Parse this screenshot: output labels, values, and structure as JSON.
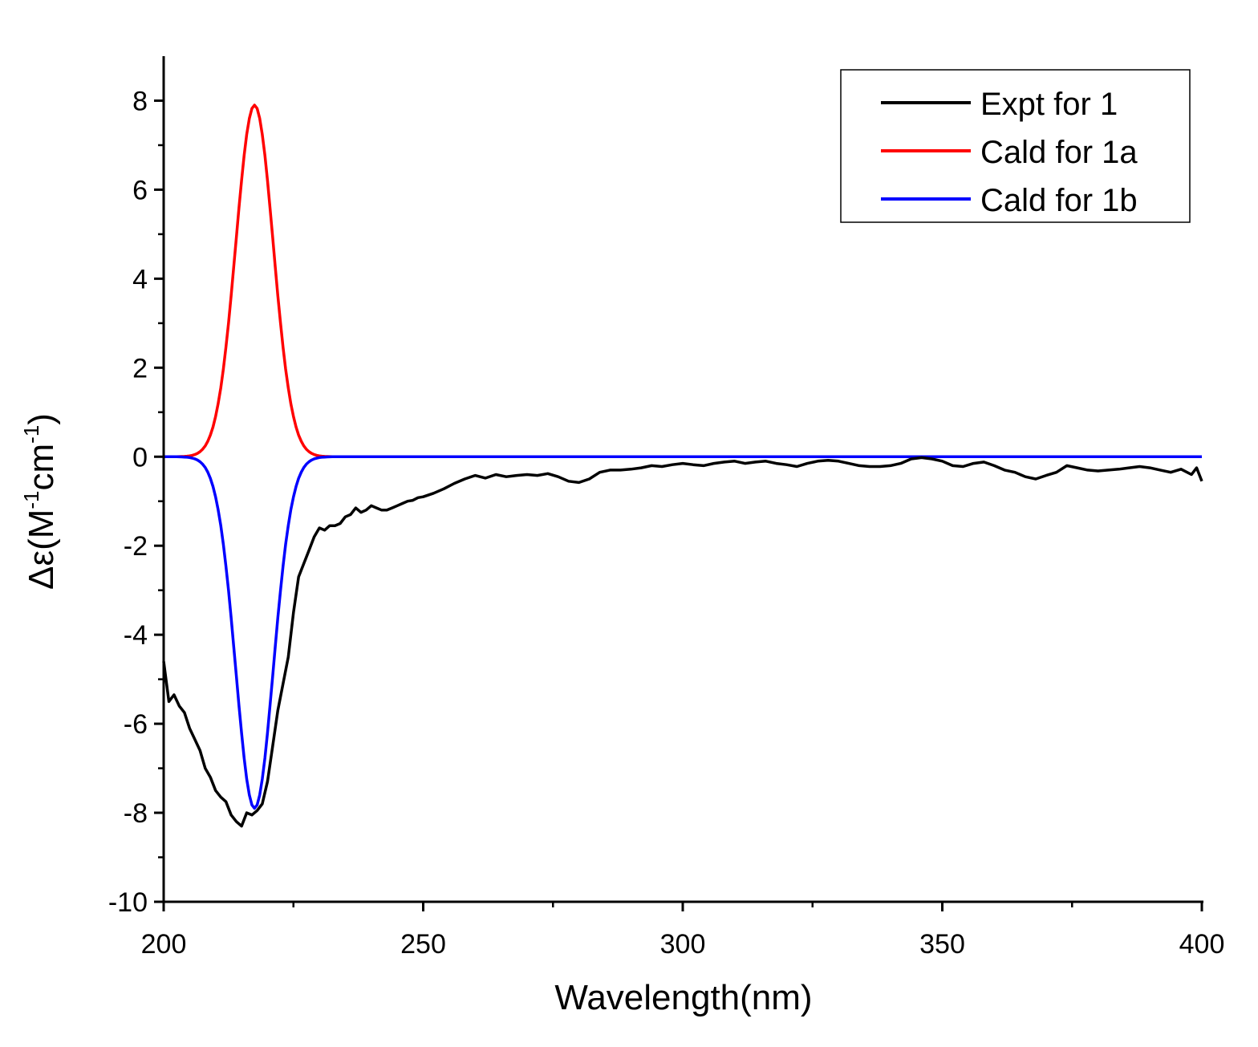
{
  "chart_data": {
    "type": "line",
    "title": "",
    "xlabel": "Wavelength(nm)",
    "ylabel": {
      "prefix": "Δε(M",
      "sup1": "-1",
      "mid": "cm",
      "sup2": "-1",
      "suffix": ")"
    },
    "xlim": [
      200,
      400
    ],
    "ylim": [
      -10,
      9
    ],
    "x_ticks": [
      200,
      250,
      300,
      350,
      400
    ],
    "x_tick_labels": [
      "200",
      "250",
      "300",
      "350",
      "400"
    ],
    "y_ticks": [
      -10,
      -8,
      -6,
      -4,
      -2,
      0,
      2,
      4,
      6,
      8
    ],
    "y_tick_labels": [
      "-10",
      "-8",
      "-6",
      "-4",
      "-2",
      "0",
      "2",
      "4",
      "6",
      "8"
    ],
    "grid": false,
    "legend_position": "top-right",
    "series": [
      {
        "name": "Expt for 1",
        "color": "#000000",
        "x": [
          200,
          201,
          202,
          203,
          204,
          205,
          206,
          207,
          208,
          209,
          210,
          211,
          212,
          213,
          214,
          215,
          216,
          217,
          218,
          219,
          220,
          221,
          222,
          223,
          224,
          225,
          226,
          227,
          228,
          229,
          230,
          231,
          232,
          233,
          234,
          235,
          236,
          237,
          238,
          239,
          240,
          241,
          242,
          243,
          244,
          245,
          246,
          247,
          248,
          249,
          250,
          252,
          254,
          256,
          258,
          260,
          262,
          264,
          266,
          268,
          270,
          272,
          274,
          276,
          278,
          280,
          282,
          284,
          286,
          288,
          290,
          292,
          294,
          296,
          298,
          300,
          302,
          304,
          306,
          308,
          310,
          312,
          314,
          316,
          318,
          320,
          322,
          324,
          326,
          328,
          330,
          332,
          334,
          336,
          338,
          340,
          342,
          344,
          346,
          348,
          350,
          352,
          354,
          356,
          358,
          360,
          362,
          364,
          366,
          368,
          370,
          372,
          374,
          376,
          378,
          380,
          382,
          384,
          386,
          388,
          390,
          392,
          394,
          396,
          398,
          399,
          400
        ],
        "y": [
          -4.6,
          -5.5,
          -5.35,
          -5.6,
          -5.75,
          -6.1,
          -6.35,
          -6.6,
          -7.0,
          -7.2,
          -7.5,
          -7.65,
          -7.75,
          -8.05,
          -8.2,
          -8.3,
          -8.0,
          -8.05,
          -7.95,
          -7.8,
          -7.3,
          -6.5,
          -5.7,
          -5.1,
          -4.5,
          -3.5,
          -2.7,
          -2.4,
          -2.1,
          -1.8,
          -1.6,
          -1.65,
          -1.55,
          -1.55,
          -1.5,
          -1.35,
          -1.3,
          -1.15,
          -1.25,
          -1.2,
          -1.1,
          -1.15,
          -1.2,
          -1.2,
          -1.15,
          -1.1,
          -1.05,
          -1.0,
          -0.98,
          -0.92,
          -0.9,
          -0.82,
          -0.72,
          -0.6,
          -0.5,
          -0.42,
          -0.48,
          -0.4,
          -0.45,
          -0.42,
          -0.4,
          -0.42,
          -0.38,
          -0.45,
          -0.55,
          -0.58,
          -0.5,
          -0.35,
          -0.3,
          -0.3,
          -0.28,
          -0.25,
          -0.2,
          -0.22,
          -0.18,
          -0.15,
          -0.18,
          -0.2,
          -0.15,
          -0.12,
          -0.1,
          -0.15,
          -0.12,
          -0.1,
          -0.15,
          -0.18,
          -0.22,
          -0.15,
          -0.1,
          -0.08,
          -0.1,
          -0.15,
          -0.2,
          -0.22,
          -0.22,
          -0.2,
          -0.15,
          -0.05,
          -0.02,
          -0.05,
          -0.1,
          -0.2,
          -0.22,
          -0.15,
          -0.12,
          -0.2,
          -0.3,
          -0.35,
          -0.45,
          -0.5,
          -0.42,
          -0.35,
          -0.2,
          -0.25,
          -0.3,
          -0.32,
          -0.3,
          -0.28,
          -0.25,
          -0.22,
          -0.25,
          -0.3,
          -0.35,
          -0.28,
          -0.4,
          -0.25,
          -0.55
        ]
      },
      {
        "name": "Cald for 1a",
        "color": "#ff0000",
        "function": "gaussian",
        "amplitude": 7.9,
        "center": 217.5,
        "sigma": 3.6,
        "x_range": [
          200,
          400
        ]
      },
      {
        "name": "Cald for 1b",
        "color": "#0000ff",
        "function": "gaussian",
        "amplitude": -7.9,
        "center": 217.5,
        "sigma": 3.6,
        "x_range": [
          200,
          400
        ]
      }
    ]
  }
}
